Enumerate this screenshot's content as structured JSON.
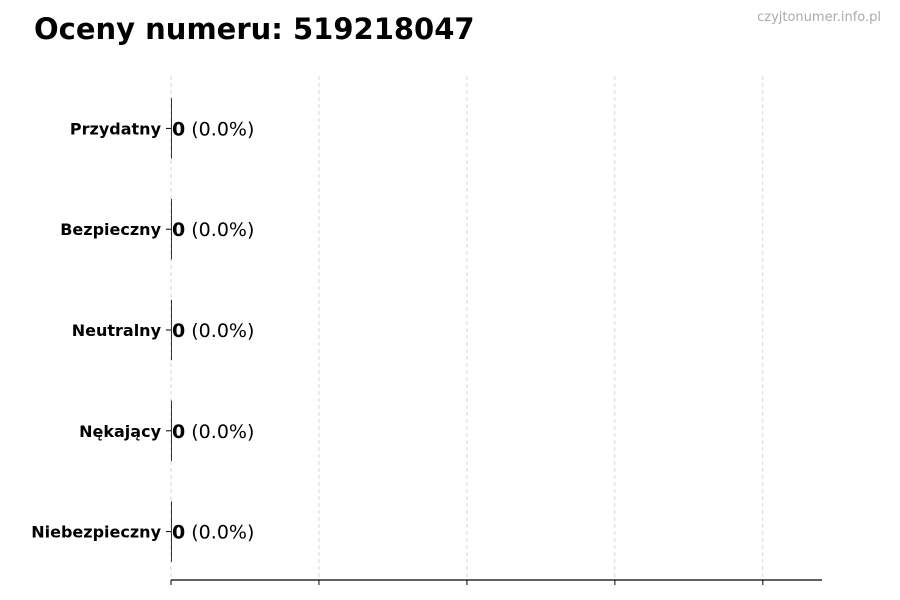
{
  "chart_data": {
    "type": "bar",
    "orientation": "horizontal",
    "title": "Oceny numeru: 519218047",
    "categories": [
      "Przydatny",
      "Bezpieczny",
      "Neutralny",
      "Nękający",
      "Niebezpieczny"
    ],
    "values": [
      0,
      0,
      0,
      0,
      0
    ],
    "data_labels": [
      {
        "count": "0",
        "percent": "(0.0%)"
      },
      {
        "count": "0",
        "percent": "(0.0%)"
      },
      {
        "count": "0",
        "percent": "(0.0%)"
      },
      {
        "count": "0",
        "percent": "(0.0%)"
      },
      {
        "count": "0",
        "percent": "(0.0%)"
      }
    ],
    "xlabel": "",
    "ylabel": "",
    "xlim": [
      0,
      4.4
    ],
    "xticks": [
      0,
      1,
      2,
      3,
      4
    ],
    "xtick_labels_shown": false,
    "grid": "x dashed",
    "bar_color": "#333333"
  },
  "watermark": "czyjtonumer.info.pl"
}
